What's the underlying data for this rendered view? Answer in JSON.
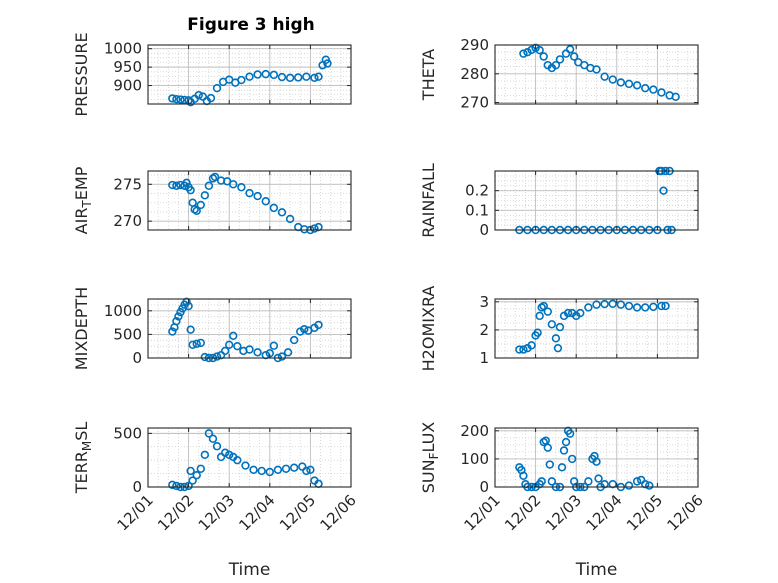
{
  "figure": {
    "title": "Figure 3 high"
  },
  "colors": {
    "marker": "#0072BD",
    "axis": "#262626",
    "grid": "#cfcfcf",
    "background": "#ffffff"
  },
  "x_axis": {
    "label": "Time",
    "ticks": [
      1,
      2,
      3,
      4,
      5,
      6
    ],
    "tick_labels": [
      "12/01",
      "12/02",
      "12/03",
      "12/04",
      "12/05",
      "12/06"
    ]
  },
  "chart_data": [
    {
      "type": "scatter",
      "id": "pressure",
      "ylabel": "PRESSURE",
      "ylabel_sub": null,
      "ylim": [
        850,
        1010
      ],
      "yticks": [
        900,
        950,
        1000
      ],
      "yticklabels": [
        "900",
        "950",
        "1000"
      ],
      "title": "Figure 3 high",
      "points": [
        [
          1.6,
          865
        ],
        [
          1.7,
          863
        ],
        [
          1.8,
          862
        ],
        [
          1.9,
          861
        ],
        [
          2.0,
          860
        ],
        [
          2.05,
          855
        ],
        [
          2.15,
          864
        ],
        [
          2.25,
          874
        ],
        [
          2.35,
          870
        ],
        [
          2.45,
          858
        ],
        [
          2.55,
          866
        ],
        [
          2.7,
          893
        ],
        [
          2.85,
          910
        ],
        [
          3.0,
          916
        ],
        [
          3.15,
          908
        ],
        [
          3.3,
          915
        ],
        [
          3.5,
          924
        ],
        [
          3.7,
          930
        ],
        [
          3.9,
          931
        ],
        [
          4.1,
          929
        ],
        [
          4.3,
          923
        ],
        [
          4.5,
          921
        ],
        [
          4.7,
          922
        ],
        [
          4.9,
          924
        ],
        [
          5.1,
          921
        ],
        [
          5.2,
          924
        ],
        [
          5.3,
          955
        ],
        [
          5.38,
          970
        ],
        [
          5.42,
          960
        ]
      ]
    },
    {
      "type": "scatter",
      "id": "theta",
      "ylabel": "THETA",
      "ylabel_sub": null,
      "ylim": [
        269.5,
        290
      ],
      "yticks": [
        270,
        280,
        290
      ],
      "yticklabels": [
        "270",
        "280",
        "290"
      ],
      "points": [
        [
          1.7,
          287
        ],
        [
          1.8,
          287.5
        ],
        [
          1.9,
          288.3
        ],
        [
          2.0,
          289
        ],
        [
          2.1,
          288.2
        ],
        [
          2.2,
          286
        ],
        [
          2.3,
          283
        ],
        [
          2.4,
          282
        ],
        [
          2.5,
          283
        ],
        [
          2.6,
          285
        ],
        [
          2.75,
          287
        ],
        [
          2.85,
          288.5
        ],
        [
          2.95,
          286
        ],
        [
          3.05,
          284
        ],
        [
          3.2,
          283
        ],
        [
          3.35,
          282
        ],
        [
          3.5,
          281.5
        ],
        [
          3.7,
          279
        ],
        [
          3.9,
          278
        ],
        [
          4.1,
          277
        ],
        [
          4.3,
          276.5
        ],
        [
          4.5,
          276
        ],
        [
          4.7,
          275
        ],
        [
          4.9,
          274.5
        ],
        [
          5.1,
          273.5
        ],
        [
          5.3,
          272.5
        ],
        [
          5.45,
          272
        ]
      ]
    },
    {
      "type": "scatter",
      "id": "air_temp",
      "ylabel": "AIR",
      "ylabel_sub": "T",
      "ylabel_suffix": "EMP",
      "ylim": [
        268.8,
        276.8
      ],
      "yticks": [
        270,
        275
      ],
      "yticklabels": [
        "270",
        "275"
      ],
      "points": [
        [
          1.6,
          274.9
        ],
        [
          1.7,
          274.8
        ],
        [
          1.8,
          274.9
        ],
        [
          1.9,
          274.8
        ],
        [
          1.95,
          275.2
        ],
        [
          2.0,
          274.6
        ],
        [
          2.05,
          274.2
        ],
        [
          2.1,
          272.5
        ],
        [
          2.15,
          271.6
        ],
        [
          2.2,
          271.4
        ],
        [
          2.3,
          272.2
        ],
        [
          2.4,
          273.5
        ],
        [
          2.5,
          274.8
        ],
        [
          2.6,
          275.8
        ],
        [
          2.65,
          276
        ],
        [
          2.8,
          275.5
        ],
        [
          2.95,
          275.4
        ],
        [
          3.1,
          275
        ],
        [
          3.3,
          274.6
        ],
        [
          3.5,
          273.8
        ],
        [
          3.7,
          273.4
        ],
        [
          3.9,
          272.7
        ],
        [
          4.1,
          271.8
        ],
        [
          4.3,
          271.2
        ],
        [
          4.5,
          270.3
        ],
        [
          4.7,
          269.2
        ],
        [
          4.85,
          268.9
        ],
        [
          5.0,
          268.8
        ],
        [
          5.1,
          269
        ],
        [
          5.2,
          269.2
        ]
      ]
    },
    {
      "type": "scatter",
      "id": "rainfall",
      "ylabel": "RAINFALL",
      "ylabel_sub": null,
      "ylim": [
        0,
        0.3
      ],
      "yticks": [
        0,
        0.1,
        0.2
      ],
      "yticklabels": [
        "0",
        "0.1",
        "0.2"
      ],
      "points": [
        [
          1.6,
          0
        ],
        [
          1.8,
          0
        ],
        [
          2.0,
          0
        ],
        [
          2.2,
          0
        ],
        [
          2.4,
          0
        ],
        [
          2.6,
          0
        ],
        [
          2.8,
          0
        ],
        [
          3.0,
          0
        ],
        [
          3.2,
          0
        ],
        [
          3.4,
          0
        ],
        [
          3.6,
          0
        ],
        [
          3.8,
          0
        ],
        [
          4.0,
          0
        ],
        [
          4.2,
          0
        ],
        [
          4.4,
          0
        ],
        [
          4.6,
          0
        ],
        [
          4.8,
          0
        ],
        [
          5.0,
          0
        ],
        [
          5.05,
          0.3
        ],
        [
          5.1,
          0.3
        ],
        [
          5.15,
          0.2
        ],
        [
          5.2,
          0.3
        ],
        [
          5.25,
          0
        ],
        [
          5.3,
          0.3
        ],
        [
          5.35,
          0
        ]
      ]
    },
    {
      "type": "scatter",
      "id": "mixdepth",
      "ylabel": "MIXDEPTH",
      "ylabel_sub": null,
      "ylim": [
        0,
        1250
      ],
      "yticks": [
        0,
        500,
        1000
      ],
      "yticklabels": [
        "0",
        "500",
        "1000"
      ],
      "points": [
        [
          1.6,
          560
        ],
        [
          1.65,
          650
        ],
        [
          1.7,
          780
        ],
        [
          1.75,
          880
        ],
        [
          1.8,
          970
        ],
        [
          1.85,
          1050
        ],
        [
          1.9,
          1130
        ],
        [
          1.95,
          1190
        ],
        [
          2.0,
          1100
        ],
        [
          2.05,
          600
        ],
        [
          2.1,
          280
        ],
        [
          2.2,
          300
        ],
        [
          2.3,
          320
        ],
        [
          2.4,
          20
        ],
        [
          2.5,
          0
        ],
        [
          2.6,
          0
        ],
        [
          2.7,
          30
        ],
        [
          2.8,
          60
        ],
        [
          2.9,
          150
        ],
        [
          3.0,
          280
        ],
        [
          3.1,
          470
        ],
        [
          3.2,
          250
        ],
        [
          3.35,
          150
        ],
        [
          3.5,
          180
        ],
        [
          3.7,
          120
        ],
        [
          3.9,
          60
        ],
        [
          4.0,
          100
        ],
        [
          4.1,
          260
        ],
        [
          4.2,
          0
        ],
        [
          4.3,
          30
        ],
        [
          4.45,
          120
        ],
        [
          4.6,
          380
        ],
        [
          4.75,
          560
        ],
        [
          4.85,
          610
        ],
        [
          4.95,
          580
        ],
        [
          5.1,
          640
        ],
        [
          5.2,
          700
        ]
      ]
    },
    {
      "type": "scatter",
      "id": "h2omixra",
      "ylabel": "H2OMIXRA",
      "ylabel_sub": null,
      "ylim": [
        1,
        3.1
      ],
      "yticks": [
        1,
        2,
        3
      ],
      "yticklabels": [
        "1",
        "2",
        "3"
      ],
      "points": [
        [
          1.6,
          1.3
        ],
        [
          1.7,
          1.3
        ],
        [
          1.8,
          1.35
        ],
        [
          1.9,
          1.45
        ],
        [
          2.0,
          1.8
        ],
        [
          2.05,
          1.9
        ],
        [
          2.1,
          2.5
        ],
        [
          2.15,
          2.8
        ],
        [
          2.2,
          2.85
        ],
        [
          2.3,
          2.65
        ],
        [
          2.4,
          2.2
        ],
        [
          2.5,
          1.7
        ],
        [
          2.55,
          1.35
        ],
        [
          2.6,
          2.1
        ],
        [
          2.7,
          2.5
        ],
        [
          2.8,
          2.6
        ],
        [
          2.9,
          2.6
        ],
        [
          3.0,
          2.5
        ],
        [
          3.1,
          2.6
        ],
        [
          3.3,
          2.8
        ],
        [
          3.5,
          2.9
        ],
        [
          3.7,
          2.92
        ],
        [
          3.9,
          2.93
        ],
        [
          4.1,
          2.9
        ],
        [
          4.3,
          2.85
        ],
        [
          4.5,
          2.8
        ],
        [
          4.7,
          2.8
        ],
        [
          4.9,
          2.82
        ],
        [
          5.1,
          2.85
        ],
        [
          5.2,
          2.85
        ]
      ]
    },
    {
      "type": "scatter",
      "id": "terr_msl",
      "ylabel": "TERR",
      "ylabel_sub": "M",
      "ylabel_suffix": "SL",
      "ylim": [
        0,
        550
      ],
      "yticks": [
        0,
        500
      ],
      "yticklabels": [
        "0",
        "500"
      ],
      "points": [
        [
          1.6,
          20
        ],
        [
          1.7,
          10
        ],
        [
          1.8,
          0
        ],
        [
          1.9,
          0
        ],
        [
          2.0,
          10
        ],
        [
          2.05,
          150
        ],
        [
          2.1,
          60
        ],
        [
          2.2,
          110
        ],
        [
          2.3,
          170
        ],
        [
          2.4,
          300
        ],
        [
          2.5,
          500
        ],
        [
          2.6,
          450
        ],
        [
          2.7,
          380
        ],
        [
          2.8,
          280
        ],
        [
          2.9,
          320
        ],
        [
          3.0,
          300
        ],
        [
          3.1,
          280
        ],
        [
          3.2,
          250
        ],
        [
          3.4,
          200
        ],
        [
          3.6,
          160
        ],
        [
          3.8,
          150
        ],
        [
          4.0,
          140
        ],
        [
          4.2,
          160
        ],
        [
          4.4,
          170
        ],
        [
          4.6,
          180
        ],
        [
          4.8,
          190
        ],
        [
          4.9,
          150
        ],
        [
          5.0,
          160
        ],
        [
          5.1,
          60
        ],
        [
          5.2,
          30
        ]
      ]
    },
    {
      "type": "scatter",
      "id": "sunflux",
      "ylabel": "SUN",
      "ylabel_sub": "F",
      "ylabel_suffix": "LUX",
      "ylim": [
        0,
        210
      ],
      "yticks": [
        0,
        100,
        200
      ],
      "yticklabels": [
        "0",
        "100",
        "200"
      ],
      "points": [
        [
          1.6,
          70
        ],
        [
          1.65,
          60
        ],
        [
          1.7,
          40
        ],
        [
          1.75,
          10
        ],
        [
          1.8,
          0
        ],
        [
          1.9,
          0
        ],
        [
          2.0,
          0
        ],
        [
          2.1,
          10
        ],
        [
          2.15,
          20
        ],
        [
          2.2,
          160
        ],
        [
          2.25,
          165
        ],
        [
          2.3,
          140
        ],
        [
          2.35,
          80
        ],
        [
          2.4,
          20
        ],
        [
          2.5,
          0
        ],
        [
          2.6,
          0
        ],
        [
          2.65,
          70
        ],
        [
          2.7,
          130
        ],
        [
          2.75,
          160
        ],
        [
          2.8,
          200
        ],
        [
          2.85,
          190
        ],
        [
          2.9,
          100
        ],
        [
          2.95,
          20
        ],
        [
          3.0,
          0
        ],
        [
          3.1,
          0
        ],
        [
          3.2,
          0
        ],
        [
          3.3,
          20
        ],
        [
          3.4,
          100
        ],
        [
          3.45,
          110
        ],
        [
          3.5,
          90
        ],
        [
          3.55,
          30
        ],
        [
          3.6,
          0
        ],
        [
          3.7,
          10
        ],
        [
          3.9,
          10
        ],
        [
          4.1,
          0
        ],
        [
          4.3,
          5
        ],
        [
          4.5,
          20
        ],
        [
          4.6,
          25
        ],
        [
          4.7,
          10
        ],
        [
          4.8,
          5
        ]
      ]
    }
  ]
}
